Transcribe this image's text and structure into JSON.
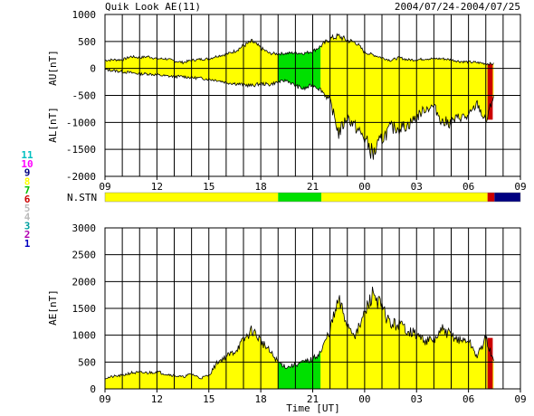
{
  "header": {
    "title": "Quik Look AE(11)",
    "date_range": "2004/07/24-2004/07/25"
  },
  "chart_data": {
    "type": "area",
    "x_ticks": [
      "09",
      "12",
      "15",
      "18",
      "21",
      "00",
      "03",
      "06",
      "09"
    ],
    "x_label": "Time [UT]",
    "colors": {
      "low_station_count": "#ffff00",
      "mid_station_count": "#00e000",
      "few_stations": "#cc0000",
      "missing": "#000080",
      "outline": "#000000"
    },
    "top_panel": {
      "ylabel_upper": "AU[nT]",
      "ylabel_lower": "AL[nT]",
      "ylim": [
        -2000,
        1000
      ],
      "y_ticks": [
        "1000",
        "500",
        "0",
        "-500",
        "-1000",
        "-1500",
        "-2000"
      ],
      "x_hours": [
        0,
        0.5,
        1,
        1.5,
        2,
        2.5,
        3,
        3.5,
        4,
        4.5,
        5,
        5.5,
        6,
        6.5,
        7,
        7.5,
        8,
        8.5,
        9,
        9.5,
        10,
        10.5,
        11,
        11.5,
        12,
        12.5,
        13,
        13.5,
        14,
        14.5,
        15,
        15.5,
        16,
        16.5,
        17,
        17.5,
        18,
        18.5,
        19,
        19.5,
        20,
        20.5,
        21,
        21.5,
        22,
        22.5
      ],
      "au_values": [
        150,
        160,
        160,
        220,
        200,
        220,
        180,
        180,
        140,
        110,
        150,
        170,
        180,
        230,
        260,
        320,
        420,
        500,
        380,
        280,
        270,
        280,
        290,
        280,
        320,
        420,
        550,
        600,
        520,
        480,
        300,
        250,
        200,
        150,
        200,
        160,
        160,
        180,
        180,
        180,
        160,
        130,
        120,
        110,
        90,
        80
      ],
      "al_values": [
        -20,
        -40,
        -60,
        -80,
        -100,
        -100,
        -120,
        -140,
        -150,
        -150,
        -170,
        -180,
        -200,
        -220,
        -260,
        -280,
        -300,
        -320,
        -280,
        -300,
        -250,
        -220,
        -320,
        -380,
        -300,
        -400,
        -600,
        -1200,
        -900,
        -1100,
        -1300,
        -1600,
        -1300,
        -1100,
        -1100,
        -1050,
        -900,
        -750,
        -700,
        -1000,
        -1000,
        -900,
        -900,
        -650,
        -1000,
        -450
      ],
      "green_ranges_hours": [
        [
          10,
          12.5
        ]
      ]
    },
    "station_bar": {
      "label": "N.STN",
      "segments": [
        {
          "from": 0,
          "to": 10,
          "level": "low_station_count"
        },
        {
          "from": 10,
          "to": 12.5,
          "level": "mid_station_count"
        },
        {
          "from": 12.5,
          "to": 22.1,
          "level": "low_station_count"
        },
        {
          "from": 22.1,
          "to": 22.5,
          "level": "few_stations"
        },
        {
          "from": 22.5,
          "to": 24,
          "level": "missing"
        }
      ],
      "legend_numbers": [
        "11",
        "10",
        "9",
        "8",
        "7",
        "6",
        "5",
        "4",
        "3",
        "2",
        "1"
      ],
      "legend_colors": [
        "#00c0c0",
        "#ff00ff",
        "#000080",
        "#ffff00",
        "#00c000",
        "#cc0000",
        "#bbbbbb",
        "#bbbbbb",
        "#00a0a0",
        "#b000b0",
        "#0000c0"
      ]
    },
    "bottom_panel": {
      "ylabel": "AE[nT]",
      "ylim": [
        0,
        3000
      ],
      "y_ticks": [
        "3000",
        "2500",
        "2000",
        "1500",
        "1000",
        "500",
        "0"
      ],
      "x_hours": [
        0,
        0.5,
        1,
        1.5,
        2,
        2.5,
        3,
        3.5,
        4,
        4.5,
        5,
        5.5,
        6,
        6.5,
        7,
        7.5,
        8,
        8.5,
        9,
        9.5,
        10,
        10.5,
        11,
        11.5,
        12,
        12.5,
        13,
        13.5,
        14,
        14.5,
        15,
        15.5,
        16,
        16.5,
        17,
        17.5,
        18,
        18.5,
        19,
        19.5,
        20,
        20.5,
        21,
        21.5,
        22,
        22.5
      ],
      "ae_values": [
        200,
        230,
        250,
        300,
        300,
        300,
        320,
        280,
        250,
        220,
        280,
        200,
        250,
        500,
        600,
        700,
        900,
        1100,
        900,
        700,
        500,
        400,
        450,
        500,
        550,
        700,
        1100,
        1650,
        1200,
        1000,
        1400,
        1800,
        1500,
        1200,
        1200,
        1100,
        1000,
        900,
        900,
        1100,
        1000,
        900,
        900,
        600,
        950,
        450
      ],
      "green_ranges_hours": [
        [
          10,
          12.5
        ]
      ]
    }
  }
}
